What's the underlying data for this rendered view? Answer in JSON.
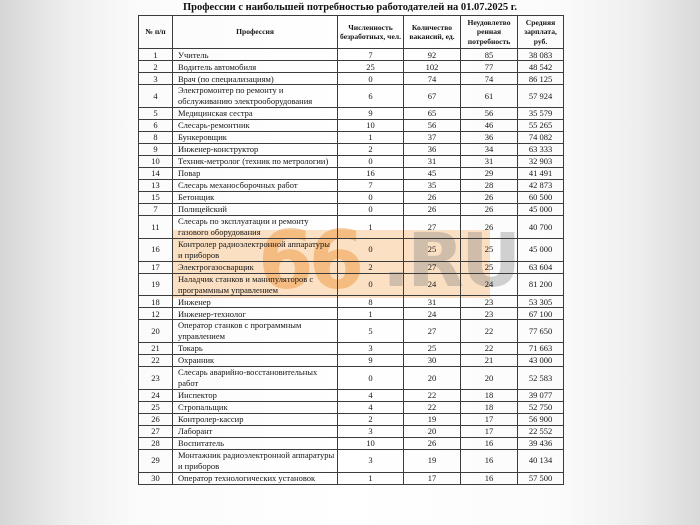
{
  "title": "Профессии с наибольшей потребностью работодателей на 01.07.2025 г.",
  "watermark": {
    "orange_text": "66",
    "gray_text": ".RU",
    "orange_color": "#f09842",
    "peach_fill": "#f7c792",
    "gray_color": "#7d7d7d"
  },
  "table": {
    "headers": [
      "№ п/п",
      "Профессия",
      "Численность безработных, чел.",
      "Количество вакансий, ед.",
      "Неудовлетво ренная потребность",
      "Средняя зарплата, руб."
    ],
    "rows": [
      [
        "1",
        "Учитель",
        "7",
        "92",
        "85",
        "38 083"
      ],
      [
        "2",
        "Водитель автомобиля",
        "25",
        "102",
        "77",
        "48 542"
      ],
      [
        "3",
        "Врач (по специализациям)",
        "0",
        "74",
        "74",
        "86 125"
      ],
      [
        "4",
        "Электромонтер по ремонту и обслуживанию электрооборудования",
        "6",
        "67",
        "61",
        "57 924"
      ],
      [
        "5",
        "Медицинская сестра",
        "9",
        "65",
        "56",
        "35 579"
      ],
      [
        "6",
        "Слесарь-ремонтник",
        "10",
        "56",
        "46",
        "55 265"
      ],
      [
        "8",
        "Бункеровщик",
        "1",
        "37",
        "36",
        "74 082"
      ],
      [
        "9",
        "Инженер-конструктор",
        "2",
        "36",
        "34",
        "63 333"
      ],
      [
        "10",
        "Техник-метролог (техник по метрологии)",
        "0",
        "31",
        "31",
        "32 903"
      ],
      [
        "14",
        "Повар",
        "16",
        "45",
        "29",
        "41 491"
      ],
      [
        "13",
        "Слесарь механосборочных работ",
        "7",
        "35",
        "28",
        "42 873"
      ],
      [
        "15",
        "Бетонщик",
        "0",
        "26",
        "26",
        "60 500"
      ],
      [
        "7",
        "Полицейский",
        "0",
        "26",
        "26",
        "45 000"
      ],
      [
        "11",
        "Слесарь по эксплуатации и ремонту газового оборудования",
        "1",
        "27",
        "26",
        "40 700"
      ],
      [
        "16",
        "Контролер радиоэлектронной аппаратуры и приборов",
        "0",
        "25",
        "25",
        "45 000"
      ],
      [
        "17",
        "Электрогазосварщик",
        "2",
        "27",
        "25",
        "63 604"
      ],
      [
        "19",
        "Наладчик станков и манипуляторов с программным управлением",
        "0",
        "24",
        "24",
        "81 200"
      ],
      [
        "18",
        "Инженер",
        "8",
        "31",
        "23",
        "53 305"
      ],
      [
        "12",
        "Инженер-технолог",
        "1",
        "24",
        "23",
        "67 100"
      ],
      [
        "20",
        "Оператор станков с программным управлением",
        "5",
        "27",
        "22",
        "77 650"
      ],
      [
        "21",
        "Токарь",
        "3",
        "25",
        "22",
        "71 663"
      ],
      [
        "22",
        "Охранник",
        "9",
        "30",
        "21",
        "43 000"
      ],
      [
        "23",
        "Слесарь аварийно-восстановительных работ",
        "0",
        "20",
        "20",
        "52 583"
      ],
      [
        "24",
        "Инспектор",
        "4",
        "22",
        "18",
        "39 077"
      ],
      [
        "25",
        "Стропальщик",
        "4",
        "22",
        "18",
        "52 750"
      ],
      [
        "26",
        "Контролер-кассир",
        "2",
        "19",
        "17",
        "56 900"
      ],
      [
        "27",
        "Лаборант",
        "3",
        "20",
        "17",
        "22 552"
      ],
      [
        "28",
        "Воспитатель",
        "10",
        "26",
        "16",
        "39 436"
      ],
      [
        "29",
        "Монтажник радиоэлектронной аппаратуры и приборов",
        "3",
        "19",
        "16",
        "40 134"
      ],
      [
        "30",
        "Оператор технологических установок",
        "1",
        "17",
        "16",
        "57 500"
      ]
    ]
  }
}
